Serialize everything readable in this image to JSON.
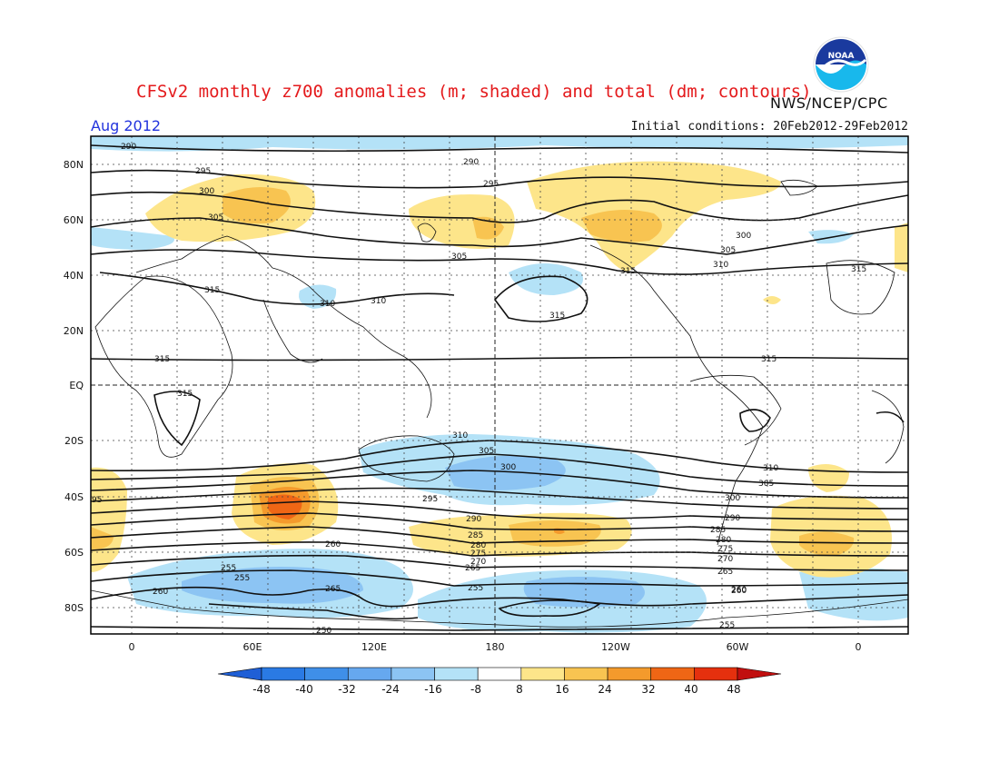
{
  "header": {
    "title": "CFSv2 monthly z700 anomalies (m; shaded) and total (dm; contours)",
    "agency": "NWS/NCEP/CPC",
    "month": "Aug 2012",
    "initial_conditions": "Initial conditions: 20Feb2012-29Feb2012",
    "logo_text": "NOAA"
  },
  "map": {
    "lat_labels": [
      "80N",
      "60N",
      "40N",
      "20N",
      "EQ",
      "20S",
      "40S",
      "60S",
      "80S"
    ],
    "lon_labels": [
      "0",
      "60E",
      "120E",
      "180",
      "120W",
      "60W",
      "0"
    ],
    "contour_labels": [
      "290",
      "290",
      "295",
      "295",
      "300",
      "300",
      "305",
      "305",
      "305",
      "310",
      "310",
      "310",
      "315",
      "315",
      "315",
      "315",
      "315",
      "315",
      "315",
      "310",
      "305",
      "300",
      "295",
      "290",
      "285",
      "280",
      "275",
      "270",
      "265",
      "260",
      "255",
      "255",
      "265",
      "260",
      "255",
      "260",
      "95",
      "310",
      "305",
      "300",
      "290",
      "285",
      "280",
      "275",
      "270",
      "265",
      "260",
      "255",
      "250"
    ]
  },
  "colorbar": {
    "ticks": [
      "-48",
      "-40",
      "-32",
      "-24",
      "-16",
      "-8",
      "8",
      "16",
      "24",
      "32",
      "40",
      "48"
    ],
    "colors": [
      "#1f5fd6",
      "#2a7ae4",
      "#3f8fe8",
      "#66a8ef",
      "#8cc4f3",
      "#b4e2f7",
      "#ffffff",
      "#fde58a",
      "#f8c451",
      "#f49a2c",
      "#ef6615",
      "#e5300e",
      "#c10f0f"
    ]
  }
}
